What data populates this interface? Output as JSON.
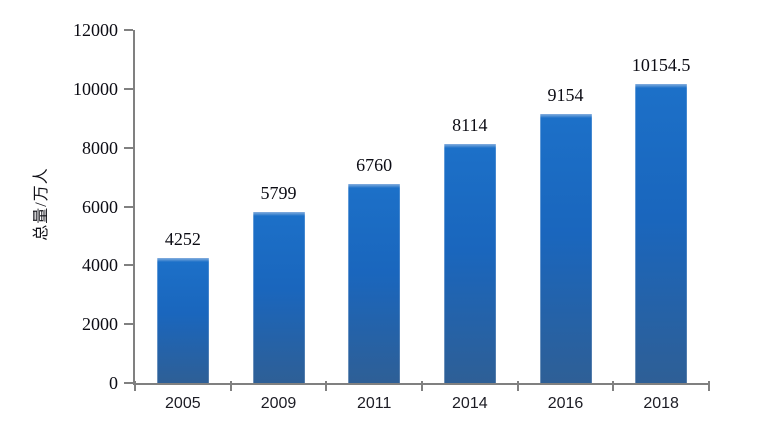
{
  "chart_data": {
    "type": "bar",
    "title": "",
    "xlabel": "",
    "ylabel": "总量/万人",
    "categories": [
      "2005",
      "2009",
      "2011",
      "2014",
      "2016",
      "2018"
    ],
    "values": [
      4252,
      5799,
      6760,
      8114,
      9154,
      10154.5
    ],
    "value_labels": [
      "4252",
      "5799",
      "6760",
      "8114",
      "9154",
      "10154.5"
    ],
    "ylim": [
      0,
      12000
    ],
    "yticks": [
      0,
      2000,
      4000,
      6000,
      8000,
      10000,
      12000
    ],
    "grid": false,
    "legend": false,
    "colors": {
      "bar_bevel": "#86afdf",
      "bar_top": "#1c70c8",
      "bar_mid": "#1a66bd",
      "bar_bottom": "#2e5f96",
      "axis": "#808080",
      "label_text": "#0c0c14",
      "xlabel_text": "#1c1c24"
    }
  }
}
